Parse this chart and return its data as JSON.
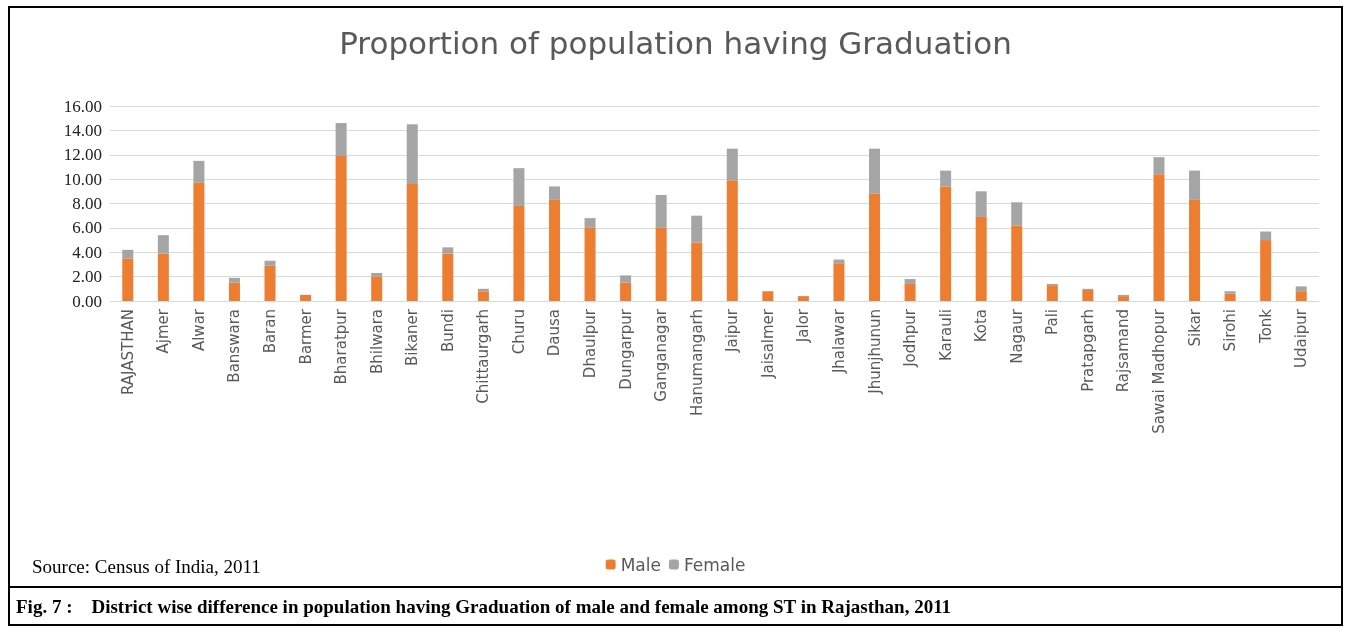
{
  "chart_data": {
    "type": "bar",
    "title": "Proportion of population having Graduation",
    "categories": [
      "RAJASTHAN",
      "Ajmer",
      "Alwar",
      "Banswara",
      "Baran",
      "Barmer",
      "Bharatpur",
      "Bhilwara",
      "Bikaner",
      "Bundi",
      "Chittaurgarh",
      "Churu",
      "Dausa",
      "Dhaulpur",
      "Dungarpur",
      "Ganganagar",
      "Hanumangarh",
      "Jaipur",
      "Jaisalmer",
      "Jalor",
      "Jhalawar",
      "Jhunjhunun",
      "Jodhpur",
      "Karauli",
      "Kota",
      "Nagaur",
      "Pali",
      "Pratapgarh",
      "Rajsamand",
      "Sawai Madhopur",
      "Sikar",
      "Sirohi",
      "Tonk",
      "Udaipur"
    ],
    "series": [
      {
        "name": "Male",
        "color": "#ed7d31",
        "values": [
          3.5,
          3.9,
          9.7,
          1.5,
          2.9,
          0.5,
          11.9,
          2.0,
          9.6,
          3.9,
          0.8,
          7.8,
          8.3,
          6.0,
          1.5,
          6.0,
          4.8,
          9.9,
          0.8,
          0.4,
          3.1,
          8.8,
          1.4,
          9.4,
          6.9,
          6.2,
          1.3,
          0.9,
          0.4,
          10.4,
          8.3,
          0.6,
          5.0,
          0.8
        ]
      },
      {
        "name": "Female",
        "color": "#a5a5a5",
        "values": [
          0.7,
          1.5,
          1.8,
          0.4,
          0.4,
          null,
          2.7,
          0.3,
          4.9,
          0.5,
          0.2,
          3.1,
          1.1,
          0.8,
          0.6,
          2.7,
          2.2,
          2.6,
          null,
          null,
          0.3,
          3.7,
          0.4,
          1.3,
          2.1,
          1.9,
          0.1,
          0.1,
          0.1,
          1.4,
          2.4,
          0.2,
          0.7,
          0.4
        ]
      }
    ],
    "stacked": true,
    "ylim": [
      0,
      16
    ],
    "yticks": [
      {
        "value": 0,
        "label": "0.00"
      },
      {
        "value": 2,
        "label": "2.00"
      },
      {
        "value": 4,
        "label": "4.00"
      },
      {
        "value": 6,
        "label": "6.00"
      },
      {
        "value": 8,
        "label": "8.00"
      },
      {
        "value": 10,
        "label": "10.00"
      },
      {
        "value": 12,
        "label": "12.00"
      },
      {
        "value": 14,
        "label": "14.00"
      },
      {
        "value": 16,
        "label": "16.00"
      }
    ],
    "grid": "y",
    "legend": "bottom",
    "annotations": [
      "Source: Census of India, 2011",
      "Fig. 7 :    District wise difference in population having Graduation of male and female among ST in Rajasthan, 2011"
    ]
  }
}
